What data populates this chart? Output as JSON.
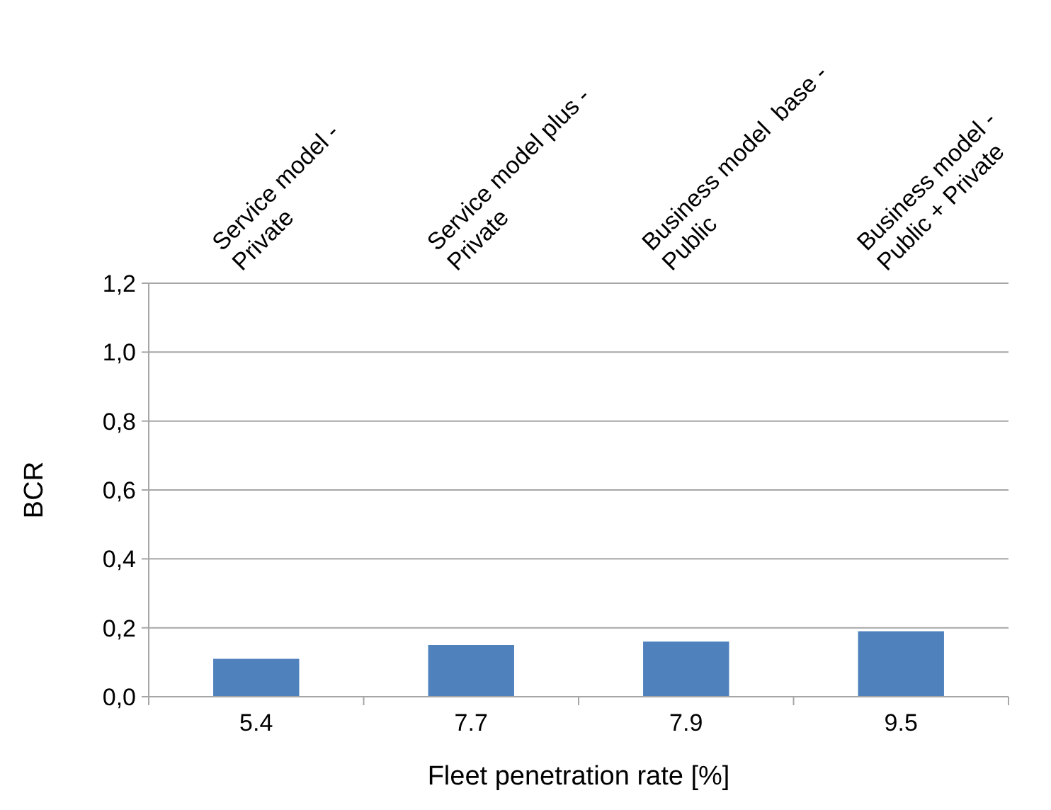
{
  "chart_data": {
    "type": "bar",
    "xlabel": "Fleet penetration rate [%]",
    "ylabel": "BCR",
    "categories": [
      "5.4",
      "7.7",
      "7.9",
      "9.5"
    ],
    "values": [
      0.11,
      0.15,
      0.16,
      0.19
    ],
    "color": "#4f81bd",
    "ylim": [
      0,
      1.2
    ],
    "yticks": [
      {
        "value": 0,
        "label": "0,0"
      },
      {
        "value": 0.2,
        "label": "0,2"
      },
      {
        "value": 0.4,
        "label": "0,4"
      },
      {
        "value": 0.6,
        "label": "0,6"
      },
      {
        "value": 0.8,
        "label": "0,8"
      },
      {
        "value": 1.0,
        "label": "1,0"
      },
      {
        "value": 1.2,
        "label": "1,2"
      }
    ],
    "grid": "y",
    "annotations": [
      "Service model - Private",
      "Service model plus - Private",
      "Business model  base - Public",
      "Business model - Public + Private"
    ]
  }
}
